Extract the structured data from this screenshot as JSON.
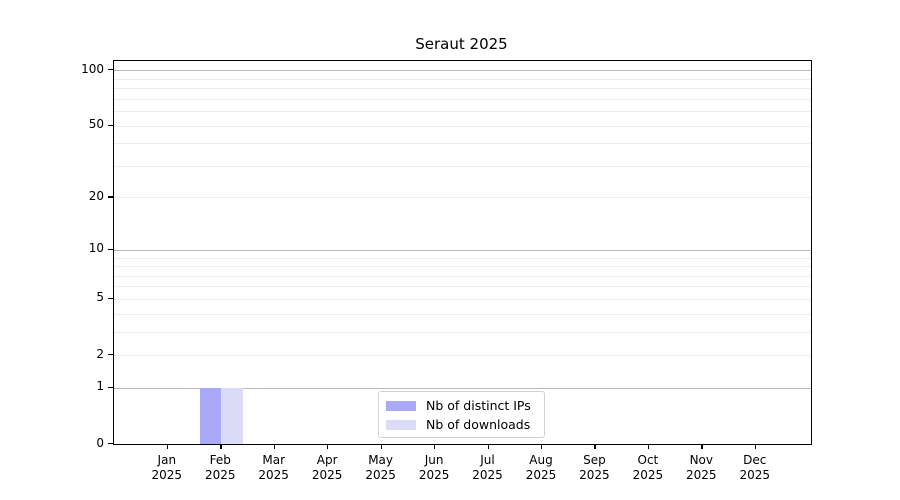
{
  "chart_data": {
    "type": "bar",
    "title": "Seraut 2025",
    "categories": [
      "Jan 2025",
      "Feb 2025",
      "Mar 2025",
      "Apr 2025",
      "May 2025",
      "Jun 2025",
      "Jul 2025",
      "Aug 2025",
      "Sep 2025",
      "Oct 2025",
      "Nov 2025",
      "Dec 2025"
    ],
    "series": [
      {
        "name": "Nb of distinct IPs",
        "color": "#a9a9f7",
        "values": [
          0,
          1,
          0,
          0,
          0,
          0,
          0,
          0,
          0,
          0,
          0,
          0
        ]
      },
      {
        "name": "Nb of downloads",
        "color": "#dcdcf9",
        "values": [
          0,
          1,
          0,
          0,
          0,
          0,
          0,
          0,
          0,
          0,
          0,
          0
        ]
      }
    ],
    "xlabel": "",
    "ylabel": "",
    "y_scale": "log1p",
    "y_ticks": [
      0,
      1,
      2,
      5,
      10,
      20,
      50,
      100
    ],
    "y_major_gridlines": [
      1,
      10,
      100
    ],
    "y_minor_gridlines": [
      2,
      3,
      4,
      5,
      6,
      7,
      8,
      9,
      20,
      30,
      40,
      50,
      60,
      70,
      80,
      90
    ],
    "ylim": [
      0,
      112
    ],
    "grid": true,
    "legend_position": "lower center",
    "colors": {
      "major_grid": "#b8b8b8",
      "minor_grid": "#ededed",
      "axis": "#000000",
      "text": "#000000",
      "background": "#ffffff"
    }
  }
}
